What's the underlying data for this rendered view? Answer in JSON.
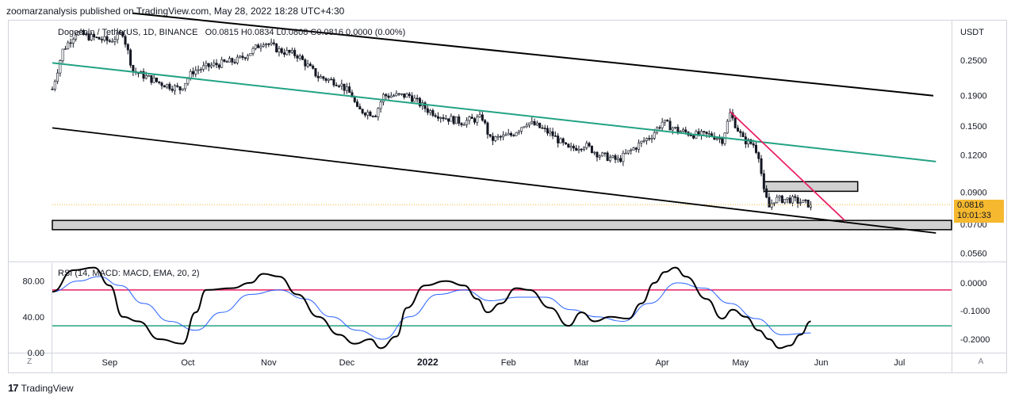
{
  "header": {
    "published_by": "zoomarzanalysis published on TradingView.com, May 28, 2022 18:28 UTC+4:30"
  },
  "legend": {
    "symbol": "Dogecoin / TetherUS, 1D, BINANCE",
    "ohlc": "O0.0815  H0.0834  L0.0808  C0.0816  0.0000 (0.00%)"
  },
  "rsi_legend": "RSI (14, MACD: MACD, EMA, 20, 2)",
  "price_tag": {
    "price": "0.0816",
    "countdown": "10:01:33",
    "color": "#f5b82e"
  },
  "footer": {
    "brand": "TradingView",
    "mark": "17"
  },
  "corner_buttons": {
    "left": "Z",
    "right": "A"
  },
  "colors": {
    "up": "#131722",
    "down": "#131722",
    "channel": "#000000",
    "mid_line": "#22a283",
    "trend": "#e91e63",
    "rsi_upper": "#e91e63",
    "rsi_lower": "#22a283",
    "rsi_signal": "#2962ff",
    "zone": "#d1d1d1"
  },
  "chart_data": [
    {
      "type": "candlestick",
      "scale": "log",
      "currency_label": "USDT",
      "y_ticks": [
        0.25,
        0.19,
        0.15,
        0.12,
        0.09,
        0.07,
        0.056
      ],
      "y_tick_labels": [
        "0.2500",
        "0.1900",
        "0.1500",
        "0.1200",
        "0.0900",
        "0.0700",
        "0.0560"
      ],
      "ylim": [
        0.0525,
        0.34
      ],
      "x_ticks": [
        "Sep",
        "Oct",
        "Nov",
        "Dec",
        "2022",
        "Feb",
        "Mar",
        "Apr",
        "May",
        "Jun",
        "Jul"
      ],
      "x_tick_dates": [
        "2021-09-01",
        "2021-10-01",
        "2021-11-01",
        "2021-12-01",
        "2022-01-01",
        "2022-02-01",
        "2022-03-01",
        "2022-04-01",
        "2022-05-01",
        "2022-06-01",
        "2022-07-01"
      ],
      "xlim": [
        "2021-08-10",
        "2022-07-21"
      ],
      "last_price": 0.0816,
      "price_keyframes": [
        [
          "2021-08-10",
          0.2
        ],
        [
          "2021-08-14",
          0.27
        ],
        [
          "2021-08-19",
          0.31
        ],
        [
          "2021-08-24",
          0.3
        ],
        [
          "2021-09-01",
          0.29
        ],
        [
          "2021-09-06",
          0.31
        ],
        [
          "2021-09-10",
          0.23
        ],
        [
          "2021-09-20",
          0.21
        ],
        [
          "2021-09-28",
          0.2
        ],
        [
          "2021-10-03",
          0.23
        ],
        [
          "2021-10-10",
          0.24
        ],
        [
          "2021-10-20",
          0.25
        ],
        [
          "2021-10-26",
          0.27
        ],
        [
          "2021-10-30",
          0.29
        ],
        [
          "2021-11-05",
          0.27
        ],
        [
          "2021-11-12",
          0.26
        ],
        [
          "2021-11-20",
          0.22
        ],
        [
          "2021-11-28",
          0.21
        ],
        [
          "2021-12-03",
          0.19
        ],
        [
          "2021-12-05",
          0.17
        ],
        [
          "2021-12-12",
          0.165
        ],
        [
          "2021-12-15",
          0.19
        ],
        [
          "2021-12-25",
          0.19
        ],
        [
          "2022-01-01",
          0.17
        ],
        [
          "2022-01-08",
          0.16
        ],
        [
          "2022-01-14",
          0.155
        ],
        [
          "2022-01-22",
          0.16
        ],
        [
          "2022-01-25",
          0.135
        ],
        [
          "2022-02-02",
          0.14
        ],
        [
          "2022-02-08",
          0.155
        ],
        [
          "2022-02-12",
          0.15
        ],
        [
          "2022-02-18",
          0.14
        ],
        [
          "2022-02-24",
          0.125
        ],
        [
          "2022-03-02",
          0.13
        ],
        [
          "2022-03-08",
          0.12
        ],
        [
          "2022-03-15",
          0.115
        ],
        [
          "2022-03-23",
          0.13
        ],
        [
          "2022-03-28",
          0.14
        ],
        [
          "2022-04-01",
          0.155
        ],
        [
          "2022-04-07",
          0.145
        ],
        [
          "2022-04-14",
          0.14
        ],
        [
          "2022-04-20",
          0.14
        ],
        [
          "2022-04-24",
          0.135
        ],
        [
          "2022-04-27",
          0.165
        ],
        [
          "2022-05-02",
          0.135
        ],
        [
          "2022-05-06",
          0.13
        ],
        [
          "2022-05-08",
          0.12
        ],
        [
          "2022-05-10",
          0.09
        ],
        [
          "2022-05-12",
          0.08
        ],
        [
          "2022-05-14",
          0.085
        ],
        [
          "2022-05-20",
          0.085
        ],
        [
          "2022-05-28",
          0.0816
        ]
      ],
      "drawings": {
        "upper_channel": [
          [
            "2021-09-10",
            0.36
          ],
          [
            "2022-07-14",
            0.19
          ]
        ],
        "lower_channel": [
          [
            "2021-08-10",
            0.148
          ],
          [
            "2022-07-15",
            0.0655
          ]
        ],
        "mid_line": [
          [
            "2021-08-10",
            0.245
          ],
          [
            "2022-07-15",
            0.114
          ]
        ],
        "trend_line": [
          [
            "2022-04-27",
            0.168
          ],
          [
            "2022-06-10",
            0.0722
          ]
        ],
        "resistance_box": {
          "from": "2022-05-10",
          "to": "2022-06-15",
          "low": 0.0905,
          "high": 0.0975
        },
        "support_zone": {
          "low": 0.0672,
          "high": 0.0722
        }
      }
    },
    {
      "type": "line",
      "name": "RSI (14, MACD: MACD, EMA, 20, 2)",
      "left_ticks": [
        80.0,
        40.0,
        0.0
      ],
      "left_tick_labels": [
        "80.00",
        "40.00",
        "0.00"
      ],
      "right_ticks": [
        0.0,
        -0.1,
        -0.2
      ],
      "right_tick_labels": [
        "0.0000",
        "-0.1000",
        "-0.2000"
      ],
      "ylim": [
        0,
        100
      ],
      "upper_band": 70,
      "lower_band": 30,
      "rsi_keyframes": [
        [
          "2021-08-10",
          68
        ],
        [
          "2021-08-18",
          92
        ],
        [
          "2021-08-26",
          95
        ],
        [
          "2021-09-01",
          75
        ],
        [
          "2021-09-06",
          40
        ],
        [
          "2021-09-12",
          35
        ],
        [
          "2021-09-20",
          15
        ],
        [
          "2021-09-29",
          10
        ],
        [
          "2021-10-04",
          45
        ],
        [
          "2021-10-08",
          70
        ],
        [
          "2021-10-18",
          72
        ],
        [
          "2021-10-25",
          78
        ],
        [
          "2021-10-30",
          88
        ],
        [
          "2021-11-05",
          85
        ],
        [
          "2021-11-12",
          65
        ],
        [
          "2021-11-20",
          40
        ],
        [
          "2021-11-28",
          20
        ],
        [
          "2021-12-04",
          10
        ],
        [
          "2021-12-10",
          15
        ],
        [
          "2021-12-14",
          5
        ],
        [
          "2021-12-20",
          18
        ],
        [
          "2021-12-24",
          50
        ],
        [
          "2021-12-31",
          75
        ],
        [
          "2022-01-08",
          80
        ],
        [
          "2022-01-15",
          75
        ],
        [
          "2022-01-20",
          60
        ],
        [
          "2022-01-24",
          45
        ],
        [
          "2022-01-29",
          55
        ],
        [
          "2022-02-04",
          72
        ],
        [
          "2022-02-09",
          70
        ],
        [
          "2022-02-17",
          50
        ],
        [
          "2022-02-24",
          30
        ],
        [
          "2022-03-01",
          45
        ],
        [
          "2022-03-06",
          35
        ],
        [
          "2022-03-12",
          40
        ],
        [
          "2022-03-19",
          38
        ],
        [
          "2022-03-24",
          55
        ],
        [
          "2022-03-29",
          78
        ],
        [
          "2022-04-02",
          90
        ],
        [
          "2022-04-06",
          95
        ],
        [
          "2022-04-10",
          85
        ],
        [
          "2022-04-18",
          60
        ],
        [
          "2022-04-24",
          38
        ],
        [
          "2022-04-28",
          48
        ],
        [
          "2022-05-03",
          40
        ],
        [
          "2022-05-08",
          25
        ],
        [
          "2022-05-12",
          15
        ],
        [
          "2022-05-16",
          5
        ],
        [
          "2022-05-20",
          8
        ],
        [
          "2022-05-24",
          20
        ],
        [
          "2022-05-28",
          35
        ]
      ],
      "signal_keyframes": [
        [
          "2021-08-10",
          68
        ],
        [
          "2021-08-20",
          80
        ],
        [
          "2021-08-28",
          85
        ],
        [
          "2021-09-05",
          75
        ],
        [
          "2021-09-14",
          55
        ],
        [
          "2021-09-24",
          35
        ],
        [
          "2021-10-04",
          25
        ],
        [
          "2021-10-14",
          45
        ],
        [
          "2021-10-25",
          65
        ],
        [
          "2021-11-05",
          70
        ],
        [
          "2021-11-15",
          60
        ],
        [
          "2021-11-25",
          40
        ],
        [
          "2021-12-05",
          25
        ],
        [
          "2021-12-15",
          15
        ],
        [
          "2021-12-25",
          40
        ],
        [
          "2022-01-05",
          65
        ],
        [
          "2022-01-15",
          70
        ],
        [
          "2022-01-25",
          58
        ],
        [
          "2022-02-05",
          62
        ],
        [
          "2022-02-15",
          62
        ],
        [
          "2022-02-25",
          48
        ],
        [
          "2022-03-07",
          40
        ],
        [
          "2022-03-17",
          35
        ],
        [
          "2022-03-27",
          55
        ],
        [
          "2022-04-07",
          78
        ],
        [
          "2022-04-17",
          72
        ],
        [
          "2022-04-27",
          55
        ],
        [
          "2022-05-07",
          38
        ],
        [
          "2022-05-17",
          20
        ],
        [
          "2022-05-28",
          22
        ]
      ]
    }
  ]
}
